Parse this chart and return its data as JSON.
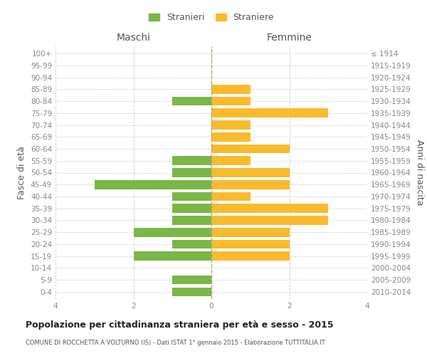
{
  "age_groups": [
    "0-4",
    "5-9",
    "10-14",
    "15-19",
    "20-24",
    "25-29",
    "30-34",
    "35-39",
    "40-44",
    "45-49",
    "50-54",
    "55-59",
    "60-64",
    "65-69",
    "70-74",
    "75-79",
    "80-84",
    "85-89",
    "90-94",
    "95-99",
    "100+"
  ],
  "birth_years": [
    "2010-2014",
    "2005-2009",
    "2000-2004",
    "1995-1999",
    "1990-1994",
    "1985-1989",
    "1980-1984",
    "1975-1979",
    "1970-1974",
    "1965-1969",
    "1960-1964",
    "1955-1959",
    "1950-1954",
    "1945-1949",
    "1940-1944",
    "1935-1939",
    "1930-1934",
    "1925-1929",
    "1920-1924",
    "1915-1919",
    "≤ 1914"
  ],
  "maschi": [
    1,
    1,
    0,
    2,
    1,
    2,
    1,
    1,
    1,
    3,
    1,
    1,
    0,
    0,
    0,
    0,
    1,
    0,
    0,
    0,
    0
  ],
  "femmine": [
    0,
    0,
    0,
    2,
    2,
    2,
    3,
    3,
    1,
    2,
    2,
    1,
    2,
    1,
    1,
    3,
    1,
    1,
    0,
    0,
    0
  ],
  "color_maschi": "#7ab648",
  "color_femmine": "#f9bb2d",
  "title": "Popolazione per cittadinanza straniera per età e sesso - 2015",
  "subtitle": "COMUNE DI ROCCHETTA A VOLTURNO (IS) - Dati ISTAT 1° gennaio 2015 - Elaborazione TUTTITALIA.IT",
  "xlabel_left": "Maschi",
  "xlabel_right": "Femmine",
  "ylabel_left": "Fasce di età",
  "ylabel_right": "Anni di nascita",
  "legend_maschi": "Stranieri",
  "legend_femmine": "Straniere",
  "xlim": 4,
  "bg_color": "#ffffff",
  "grid_color": "#cccccc"
}
